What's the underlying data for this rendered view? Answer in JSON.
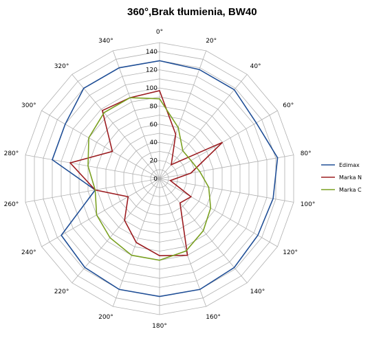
{
  "chart_data": {
    "type": "radar",
    "title": "360°,Brak tłumienia, BW40",
    "angle_labels": [
      "0°",
      "20°",
      "40°",
      "60°",
      "80°",
      "100°",
      "120°",
      "140°",
      "160°",
      "180°",
      "200°",
      "220°",
      "240°",
      "260°",
      "280°",
      "300°",
      "320°",
      "340°"
    ],
    "r_ticks": [
      "0",
      "20",
      "40",
      "60",
      "80",
      "100",
      "120",
      "140"
    ],
    "rlim": [
      0,
      140
    ],
    "grid": true,
    "legend_position": "right",
    "series": [
      {
        "name": "Edimax",
        "color": "#1f4e96",
        "values": [
          130,
          128,
          128,
          123,
          132,
          127,
          125,
          128,
          130,
          130,
          130,
          128,
          125,
          72,
          120,
          120,
          130,
          130
        ]
      },
      {
        "name": "Marka N",
        "color": "#9b1b1f",
        "values": [
          97,
          52,
          20,
          80,
          35,
          12,
          40,
          35,
          90,
          85,
          75,
          60,
          40,
          72,
          100,
          60,
          98,
          95
        ]
      },
      {
        "name": "Marka C",
        "color": "#7aa021",
        "values": [
          88,
          60,
          40,
          40,
          45,
          55,
          65,
          75,
          85,
          90,
          90,
          85,
          80,
          72,
          80,
          90,
          95,
          95
        ]
      }
    ]
  }
}
